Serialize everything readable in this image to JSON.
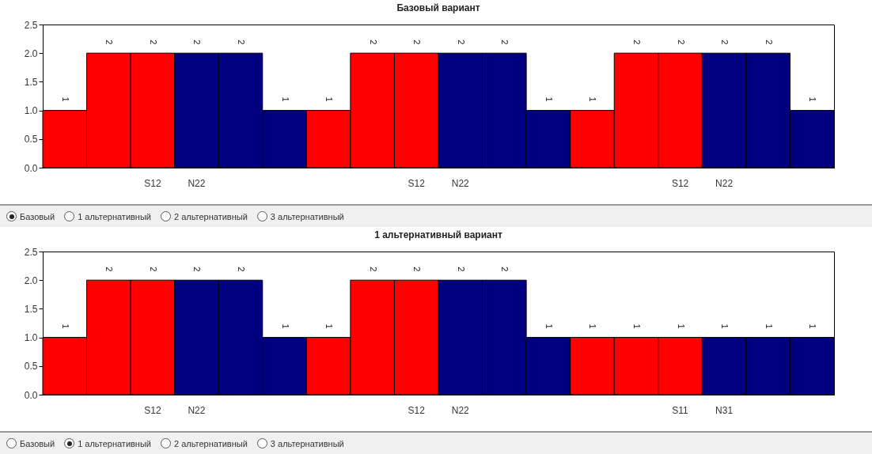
{
  "chart_data": [
    {
      "type": "bar",
      "title": "Базовый вариант",
      "categories": [
        null,
        null,
        "S12",
        "N22",
        null,
        null,
        null,
        null,
        "S12",
        "N22",
        null,
        null,
        null,
        null,
        "S12",
        "N22",
        null,
        null
      ],
      "values": [
        1,
        2,
        2,
        2,
        2,
        1,
        1,
        2,
        2,
        2,
        2,
        1,
        1,
        2,
        2,
        2,
        2,
        1
      ],
      "colors": [
        "#ff0000",
        "#ff0000",
        "#ff0000",
        "#000080",
        "#000080",
        "#000080",
        "#ff0000",
        "#ff0000",
        "#ff0000",
        "#000080",
        "#000080",
        "#000080",
        "#ff0000",
        "#ff0000",
        "#ff0000",
        "#000080",
        "#000080",
        "#000080"
      ],
      "ylim": [
        0,
        2.5
      ],
      "yticks": [
        {
          "value": 0,
          "label": "0.0"
        },
        {
          "value": 0.5,
          "label": "0.5"
        },
        {
          "value": 1,
          "label": "1.0"
        },
        {
          "value": 1.5,
          "label": "1.5"
        },
        {
          "value": 2,
          "label": "2.0"
        },
        {
          "value": 2.5,
          "label": "2.5"
        }
      ],
      "data_labels": true,
      "grid": false,
      "annotations": [
        "Базовый",
        "1 альтернативный",
        "2 альтернативный",
        "3 альтернативный"
      ]
    },
    {
      "type": "bar",
      "title": "1 альтернативный вариант",
      "categories": [
        null,
        null,
        "S12",
        "N22",
        null,
        null,
        null,
        null,
        "S12",
        "N22",
        null,
        null,
        null,
        null,
        "S11",
        "N31",
        null,
        null
      ],
      "values": [
        1,
        2,
        2,
        2,
        2,
        1,
        1,
        2,
        2,
        2,
        2,
        1,
        1,
        1,
        1,
        1,
        1,
        1
      ],
      "colors": [
        "#ff0000",
        "#ff0000",
        "#ff0000",
        "#000080",
        "#000080",
        "#000080",
        "#ff0000",
        "#ff0000",
        "#ff0000",
        "#000080",
        "#000080",
        "#000080",
        "#ff0000",
        "#ff0000",
        "#ff0000",
        "#000080",
        "#000080",
        "#000080"
      ],
      "ylim": [
        0,
        2.5
      ],
      "yticks": [
        {
          "value": 0,
          "label": "0.0"
        },
        {
          "value": 0.5,
          "label": "0.5"
        },
        {
          "value": 1,
          "label": "1.0"
        },
        {
          "value": 1.5,
          "label": "1.5"
        },
        {
          "value": 2,
          "label": "2.0"
        },
        {
          "value": 2.5,
          "label": "2.5"
        }
      ],
      "data_labels": true,
      "grid": false,
      "annotations": [
        "Базовый",
        "1 альтернативный",
        "2 альтернативный",
        "3 альтернативный"
      ]
    }
  ]
}
